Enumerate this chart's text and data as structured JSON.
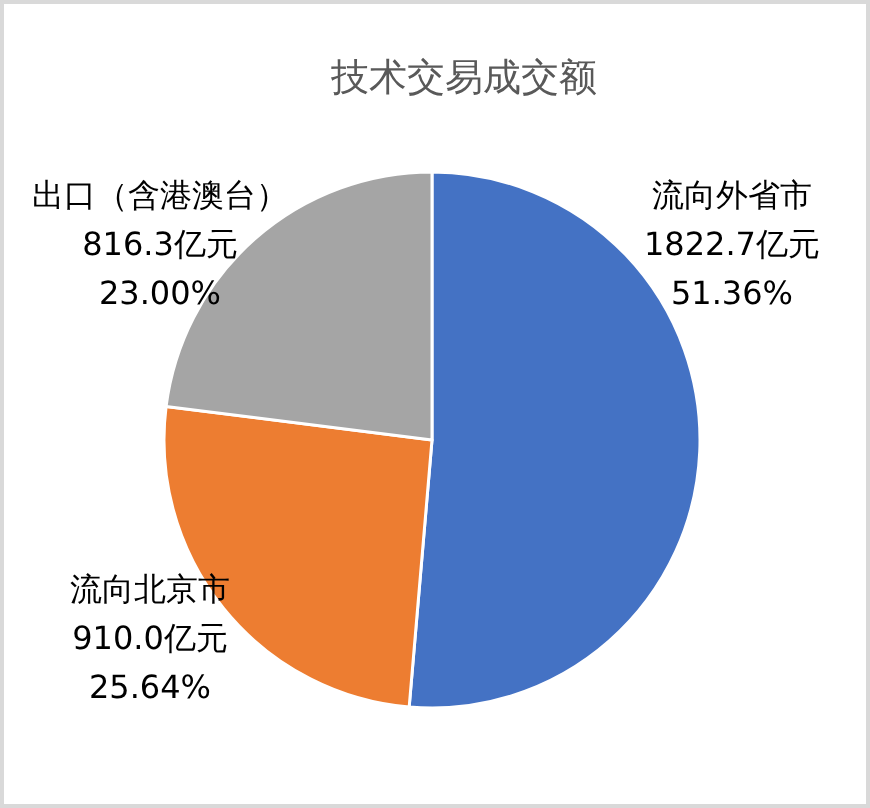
{
  "chart_data": {
    "type": "pie",
    "title": "技术交易成交额",
    "categories": [
      "流向外省市",
      "流向北京市",
      "出口（含港澳台）"
    ],
    "values": [
      1822.7,
      910.0,
      816.3
    ],
    "colors": [
      "#4472c4",
      "#ed7d31",
      "#a5a5a5"
    ],
    "value_labels": [
      "1822.7亿元\n51.36%",
      "910.0亿元\n25.64%",
      "816.3亿元\n23.00%"
    ]
  }
}
